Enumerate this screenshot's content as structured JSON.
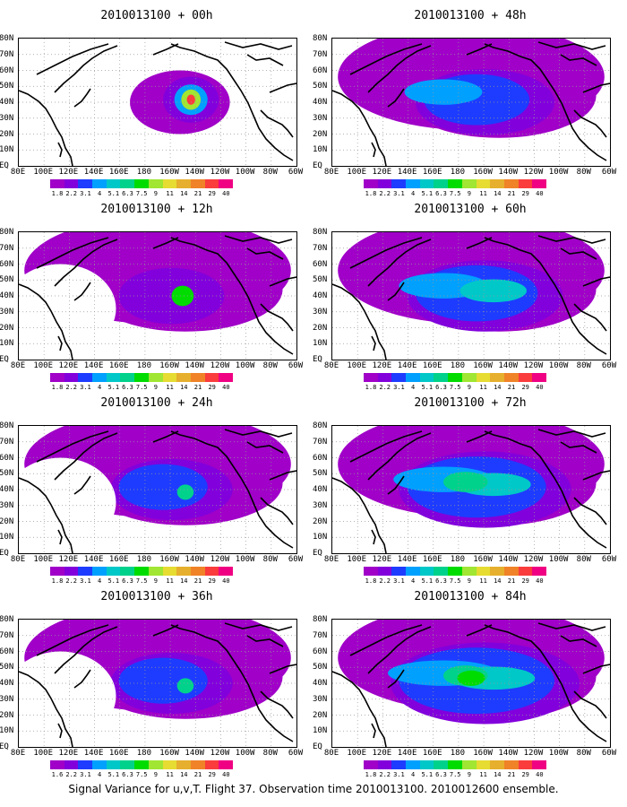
{
  "panels": [
    {
      "id": "p00",
      "title": "2010013100 + 00h",
      "col": 0,
      "row": 0,
      "spread": 0
    },
    {
      "id": "p48",
      "title": "2010013100 + 48h",
      "col": 1,
      "row": 0,
      "spread": 3
    },
    {
      "id": "p12",
      "title": "2010013100 + 12h",
      "col": 0,
      "row": 1,
      "spread": 1
    },
    {
      "id": "p60",
      "title": "2010013100 + 60h",
      "col": 1,
      "row": 1,
      "spread": 4
    },
    {
      "id": "p24",
      "title": "2010013100 + 24h",
      "col": 0,
      "row": 2,
      "spread": 2
    },
    {
      "id": "p72",
      "title": "2010013100 + 72h",
      "col": 1,
      "row": 2,
      "spread": 5
    },
    {
      "id": "p36",
      "title": "2010013100 + 36h",
      "col": 0,
      "row": 3,
      "spread": 2
    },
    {
      "id": "p84",
      "title": "2010013100 + 84h",
      "col": 1,
      "row": 3,
      "spread": 6
    }
  ],
  "lat_labels": [
    "80N",
    "70N",
    "60N",
    "50N",
    "40N",
    "30N",
    "20N",
    "10N",
    "EQ"
  ],
  "lon_labels": [
    "80E",
    "100E",
    "120E",
    "140E",
    "160E",
    "180",
    "160W",
    "140W",
    "120W",
    "100W",
    "80W",
    "60W"
  ],
  "colorbar": {
    "levels": [
      "1.8",
      "2.2",
      "3.1",
      "4",
      "5.1",
      "6.3",
      "7.5",
      "9",
      "11",
      "14",
      "21",
      "29",
      "40"
    ],
    "levels_36h": [
      "1.6",
      "2.2",
      "3.1",
      "4",
      "5.1",
      "6.3",
      "7.5",
      "9",
      "11",
      "14",
      "21",
      "29",
      "40"
    ],
    "colors": [
      "#a000c8",
      "#8200dc",
      "#1e3cff",
      "#00a0ff",
      "#00c8c8",
      "#00d28c",
      "#00dc00",
      "#a0e632",
      "#e6dc32",
      "#e6af2d",
      "#f08228",
      "#fa3c3c",
      "#f00082"
    ]
  },
  "caption": "Signal Variance for u,v,T. Flight 37. Observation time 2010013100. 2010012600 ensemble."
}
